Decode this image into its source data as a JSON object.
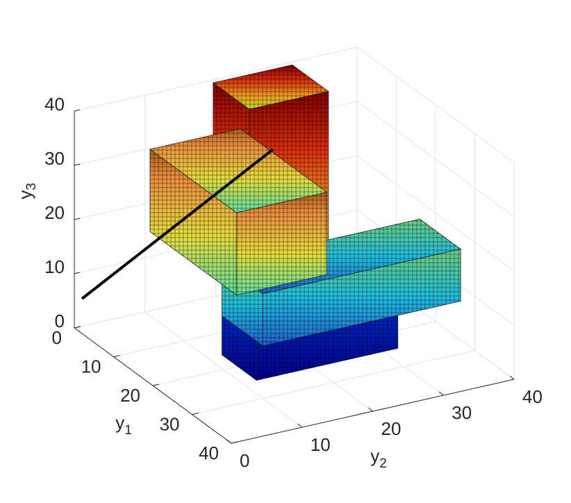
{
  "chart_data": {
    "type": "voxel3d",
    "xlabel": [
      "y",
      "1"
    ],
    "ylabel": [
      "y",
      "2"
    ],
    "zlabel": [
      "y",
      "3"
    ],
    "xlim": [
      0,
      40
    ],
    "ylim": [
      0,
      40
    ],
    "zlim": [
      0,
      40
    ],
    "xticks": [
      0,
      10,
      20,
      30,
      40
    ],
    "yticks": [
      0,
      10,
      20,
      30,
      40
    ],
    "zticks": [
      0,
      10,
      20,
      30,
      40
    ],
    "grid": true
  }
}
